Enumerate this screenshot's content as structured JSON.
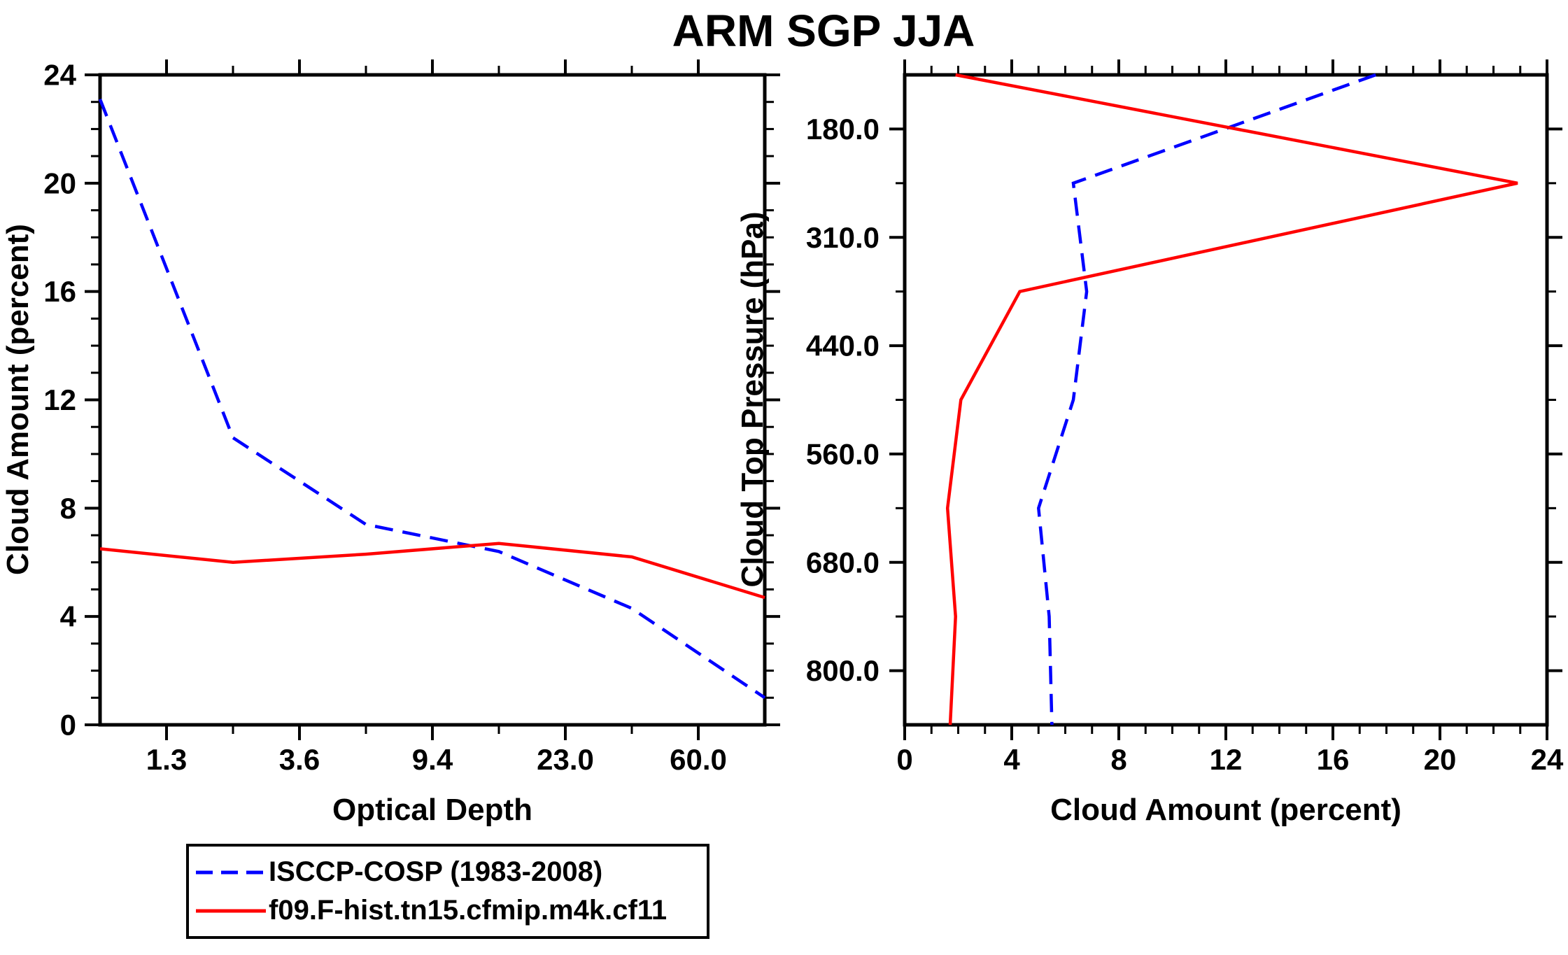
{
  "title": "ARM SGP JJA",
  "colors": {
    "axis": "#000000",
    "isccp_blue": "#0000ff",
    "model_red": "#ff0000",
    "background": "#ffffff"
  },
  "legend": {
    "items": [
      {
        "label": "ISCCP-COSP (1983-2008)",
        "color": "#0000ff",
        "line_style": "dashed"
      },
      {
        "label": "f09.F-hist.tn15.cfmip.m4k.cf11",
        "color": "#ff0000",
        "line_style": "solid"
      }
    ]
  },
  "chart_data": [
    {
      "type": "line",
      "panel": "left",
      "xlabel": "Optical Depth",
      "ylabel": "Cloud Amount (percent)",
      "x_axis_note": "ISCCP optical-depth bins; labeled ticks mark bin boundaries, data plotted at 6 evenly spaced bin centers spanning the axis",
      "x_tick_labels": [
        "1.3",
        "3.6",
        "9.4",
        "23.0",
        "60.0"
      ],
      "ylim": [
        0,
        24
      ],
      "y_major_ticks": [
        0,
        4,
        8,
        12,
        16,
        20,
        24
      ],
      "grid": false,
      "legend_position": "below-left",
      "series": [
        {
          "name": "ISCCP-COSP (1983-2008)",
          "color": "#0000ff",
          "line_style": "dashed",
          "values": [
            23.1,
            10.6,
            7.4,
            6.4,
            4.3,
            1.0
          ]
        },
        {
          "name": "f09.F-hist.tn15.cfmip.m4k.cf11",
          "color": "#ff0000",
          "line_style": "solid",
          "values": [
            6.5,
            6.0,
            6.3,
            6.7,
            6.2,
            4.7
          ]
        }
      ]
    },
    {
      "type": "line",
      "panel": "right",
      "xlabel": "Cloud Amount (percent)",
      "ylabel": "Cloud Top Pressure (hPa)",
      "y_axis_note": "ISCCP cloud-top-pressure bins (hPa), high clouds at top; labeled ticks mark bin boundaries, data plotted at 7 evenly spaced bin centers spanning the axis",
      "y_tick_labels": [
        "180.0",
        "310.0",
        "440.0",
        "560.0",
        "680.0",
        "800.0"
      ],
      "xlim": [
        0,
        24
      ],
      "x_major_ticks": [
        0,
        4,
        8,
        12,
        16,
        20,
        24
      ],
      "grid": false,
      "series": [
        {
          "name": "ISCCP-COSP (1983-2008)",
          "color": "#0000ff",
          "line_style": "dashed",
          "values": [
            17.6,
            6.3,
            6.8,
            6.3,
            5.0,
            5.4,
            5.5
          ]
        },
        {
          "name": "f09.F-hist.tn15.cfmip.m4k.cf11",
          "color": "#ff0000",
          "line_style": "solid",
          "values": [
            1.9,
            22.9,
            4.3,
            2.1,
            1.6,
            1.9,
            1.7
          ]
        }
      ]
    }
  ]
}
